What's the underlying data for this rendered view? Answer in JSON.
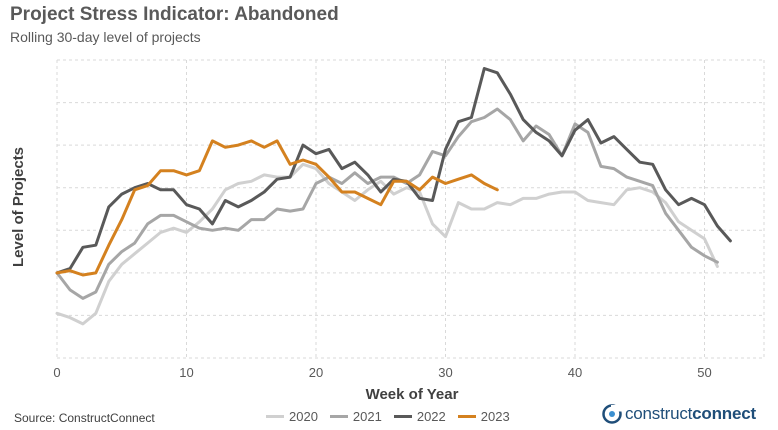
{
  "chart_data": {
    "type": "line",
    "title": "Project Stress Indicator: Abandoned",
    "subtitle": "Rolling 30-day level of projects",
    "xlabel": "Week of Year",
    "ylabel": "Level of Projects",
    "xlim": [
      0,
      53
    ],
    "ylim": [
      0,
      7
    ],
    "xticks": [
      0,
      10,
      20,
      30,
      40,
      50
    ],
    "grid": true,
    "legend_position": "bottom",
    "series": [
      {
        "name": "2020",
        "color": "#d0d0d0",
        "x": [
          0,
          1,
          2,
          3,
          4,
          5,
          6,
          7,
          8,
          9,
          10,
          11,
          12,
          13,
          14,
          15,
          16,
          17,
          18,
          19,
          20,
          21,
          22,
          23,
          24,
          25,
          26,
          27,
          28,
          29,
          30,
          31,
          32,
          33,
          34,
          35,
          36,
          37,
          38,
          39,
          40,
          41,
          42,
          43,
          44,
          45,
          46,
          47,
          48,
          49,
          50,
          51
        ],
        "values": [
          1.05,
          0.95,
          0.8,
          1.05,
          1.8,
          2.2,
          2.45,
          2.7,
          2.95,
          3.05,
          2.95,
          3.2,
          3.5,
          3.95,
          4.1,
          4.15,
          4.3,
          4.25,
          4.25,
          4.55,
          4.45,
          4.1,
          3.9,
          3.7,
          3.95,
          4.15,
          3.85,
          4.0,
          3.9,
          3.15,
          2.85,
          3.65,
          3.5,
          3.5,
          3.65,
          3.6,
          3.75,
          3.75,
          3.85,
          3.9,
          3.9,
          3.7,
          3.65,
          3.6,
          3.95,
          4.0,
          3.9,
          3.65,
          3.2,
          3.0,
          2.8,
          2.15
        ]
      },
      {
        "name": "2021",
        "color": "#a6a6a6",
        "x": [
          0,
          1,
          2,
          3,
          4,
          5,
          6,
          7,
          8,
          9,
          10,
          11,
          12,
          13,
          14,
          15,
          16,
          17,
          18,
          19,
          20,
          21,
          22,
          23,
          24,
          25,
          26,
          27,
          28,
          29,
          30,
          31,
          32,
          33,
          34,
          35,
          36,
          37,
          38,
          39,
          40,
          41,
          42,
          43,
          44,
          45,
          46,
          47,
          48,
          49,
          50,
          51
        ],
        "values": [
          2.0,
          1.6,
          1.4,
          1.55,
          2.2,
          2.5,
          2.7,
          3.15,
          3.35,
          3.35,
          3.2,
          3.05,
          3.0,
          3.05,
          3.0,
          3.25,
          3.25,
          3.5,
          3.45,
          3.5,
          4.1,
          4.25,
          4.1,
          4.35,
          4.1,
          4.25,
          4.25,
          4.1,
          4.3,
          4.85,
          4.75,
          5.2,
          5.55,
          5.65,
          5.85,
          5.6,
          5.1,
          5.45,
          5.25,
          4.75,
          5.5,
          5.3,
          4.5,
          4.45,
          4.25,
          4.15,
          4.05,
          3.4,
          3.0,
          2.6,
          2.4,
          2.25
        ]
      },
      {
        "name": "2022",
        "color": "#595959",
        "x": [
          0,
          1,
          2,
          3,
          4,
          5,
          6,
          7,
          8,
          9,
          10,
          11,
          12,
          13,
          14,
          15,
          16,
          17,
          18,
          19,
          20,
          21,
          22,
          23,
          24,
          25,
          26,
          27,
          28,
          29,
          30,
          31,
          32,
          33,
          34,
          35,
          36,
          37,
          38,
          39,
          40,
          41,
          42,
          43,
          44,
          45,
          46,
          47,
          48,
          49,
          50,
          51,
          52
        ],
        "values": [
          2.0,
          2.1,
          2.6,
          2.65,
          3.55,
          3.85,
          4.0,
          4.1,
          3.95,
          3.95,
          3.6,
          3.5,
          3.15,
          3.7,
          3.55,
          3.7,
          3.9,
          4.2,
          4.25,
          5.0,
          4.8,
          4.9,
          4.45,
          4.6,
          4.3,
          3.9,
          4.2,
          4.15,
          3.75,
          3.7,
          4.9,
          5.55,
          5.65,
          6.8,
          6.7,
          6.2,
          5.6,
          5.3,
          5.1,
          4.75,
          5.35,
          5.6,
          5.05,
          5.2,
          4.9,
          4.6,
          4.55,
          3.95,
          3.6,
          3.75,
          3.6,
          3.1,
          2.75
        ]
      },
      {
        "name": "2023",
        "color": "#d4811f",
        "x": [
          0,
          1,
          2,
          3,
          4,
          5,
          6,
          7,
          8,
          9,
          10,
          11,
          12,
          13,
          14,
          15,
          16,
          17,
          18,
          19,
          20,
          21,
          22,
          23,
          24,
          25,
          26,
          27,
          28,
          29,
          30,
          31,
          32,
          33,
          34
        ],
        "values": [
          2.0,
          2.05,
          1.95,
          2.0,
          2.65,
          3.25,
          3.95,
          4.05,
          4.4,
          4.4,
          4.3,
          4.4,
          5.1,
          4.95,
          5.0,
          5.1,
          4.95,
          5.1,
          4.55,
          4.65,
          4.55,
          4.25,
          3.9,
          3.9,
          3.75,
          3.6,
          4.15,
          4.15,
          3.95,
          4.25,
          4.1,
          4.2,
          4.3,
          4.1,
          3.95
        ]
      }
    ]
  },
  "source_text": "Source: ConstructConnect",
  "logo": {
    "prefix": "construct",
    "suffix": "connect"
  }
}
